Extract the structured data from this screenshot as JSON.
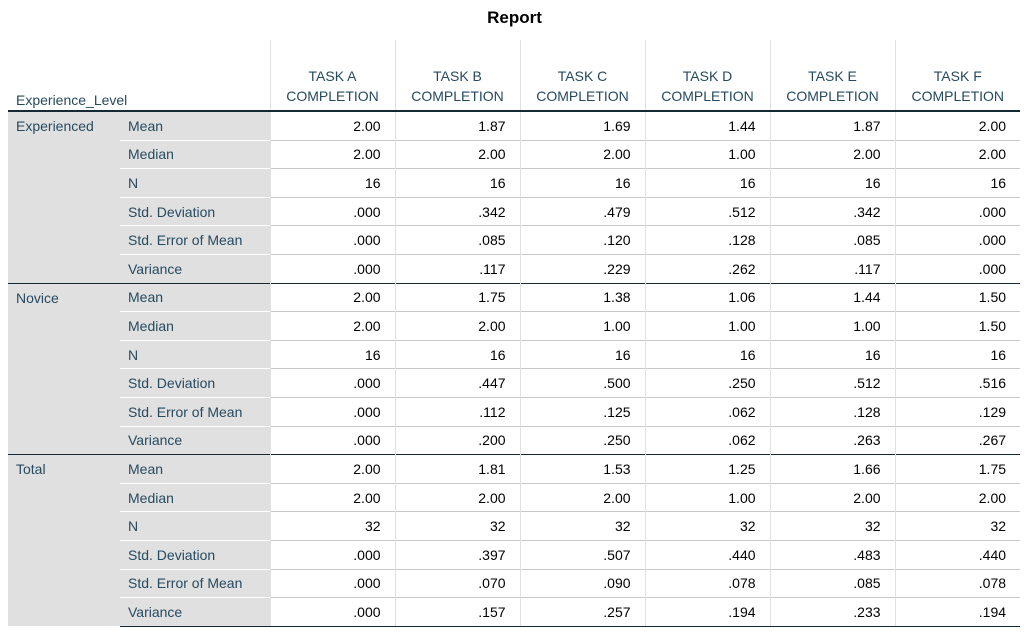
{
  "title": "Report",
  "table": {
    "corner": "Experience_Level",
    "columns": [
      "TASK A COMPLETION",
      "TASK B COMPLETION",
      "TASK C COMPLETION",
      "TASK D COMPLETION",
      "TASK E COMPLETION",
      "TASK F COMPLETION"
    ],
    "groups": [
      {
        "label": "Experienced",
        "rows": [
          {
            "stat": "Mean",
            "values": [
              "2.00",
              "1.87",
              "1.69",
              "1.44",
              "1.87",
              "2.00"
            ]
          },
          {
            "stat": "Median",
            "values": [
              "2.00",
              "2.00",
              "2.00",
              "1.00",
              "2.00",
              "2.00"
            ]
          },
          {
            "stat": "N",
            "values": [
              "16",
              "16",
              "16",
              "16",
              "16",
              "16"
            ]
          },
          {
            "stat": "Std. Deviation",
            "values": [
              ".000",
              ".342",
              ".479",
              ".512",
              ".342",
              ".000"
            ]
          },
          {
            "stat": "Std. Error of Mean",
            "values": [
              ".000",
              ".085",
              ".120",
              ".128",
              ".085",
              ".000"
            ]
          },
          {
            "stat": "Variance",
            "values": [
              ".000",
              ".117",
              ".229",
              ".262",
              ".117",
              ".000"
            ]
          }
        ]
      },
      {
        "label": "Novice",
        "rows": [
          {
            "stat": "Mean",
            "values": [
              "2.00",
              "1.75",
              "1.38",
              "1.06",
              "1.44",
              "1.50"
            ]
          },
          {
            "stat": "Median",
            "values": [
              "2.00",
              "2.00",
              "1.00",
              "1.00",
              "1.00",
              "1.50"
            ]
          },
          {
            "stat": "N",
            "values": [
              "16",
              "16",
              "16",
              "16",
              "16",
              "16"
            ]
          },
          {
            "stat": "Std. Deviation",
            "values": [
              ".000",
              ".447",
              ".500",
              ".250",
              ".512",
              ".516"
            ]
          },
          {
            "stat": "Std. Error of Mean",
            "values": [
              ".000",
              ".112",
              ".125",
              ".062",
              ".128",
              ".129"
            ]
          },
          {
            "stat": "Variance",
            "values": [
              ".000",
              ".200",
              ".250",
              ".062",
              ".263",
              ".267"
            ]
          }
        ]
      },
      {
        "label": "Total",
        "rows": [
          {
            "stat": "Mean",
            "values": [
              "2.00",
              "1.81",
              "1.53",
              "1.25",
              "1.66",
              "1.75"
            ]
          },
          {
            "stat": "Median",
            "values": [
              "2.00",
              "2.00",
              "2.00",
              "1.00",
              "2.00",
              "2.00"
            ]
          },
          {
            "stat": "N",
            "values": [
              "32",
              "32",
              "32",
              "32",
              "32",
              "32"
            ]
          },
          {
            "stat": "Std. Deviation",
            "values": [
              ".000",
              ".397",
              ".507",
              ".440",
              ".483",
              ".440"
            ]
          },
          {
            "stat": "Std. Error of Mean",
            "values": [
              ".000",
              ".070",
              ".090",
              ".078",
              ".085",
              ".078"
            ]
          },
          {
            "stat": "Variance",
            "values": [
              ".000",
              ".157",
              ".257",
              ".194",
              ".233",
              ".194"
            ]
          }
        ]
      }
    ]
  }
}
